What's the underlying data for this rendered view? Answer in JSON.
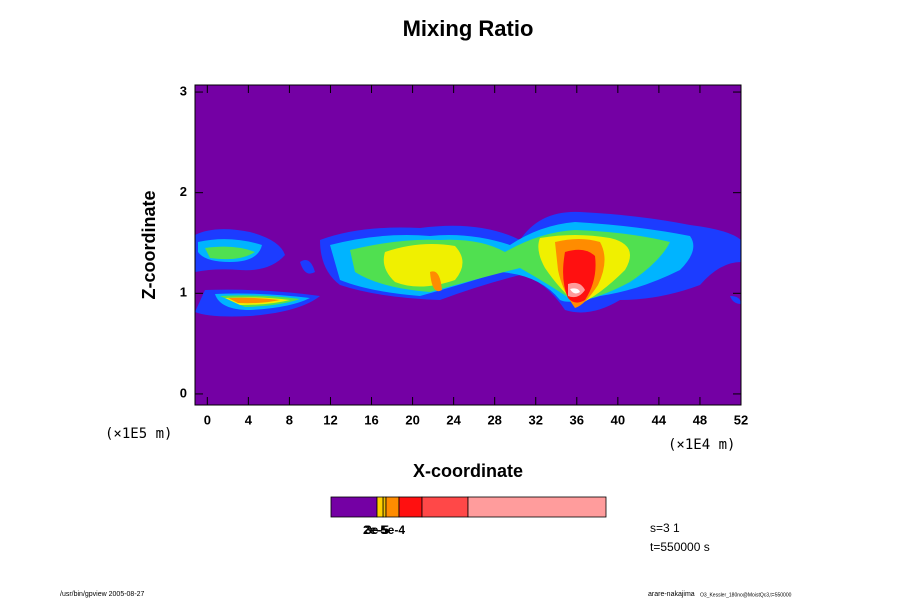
{
  "chart_data": {
    "type": "contour",
    "title": "Mixing Ratio",
    "x_label": "X-coordinate",
    "y_label": "Z-coordinate",
    "x_unit": "(×1E4 m)",
    "y_unit": "(×1E5 m)",
    "xlim": [
      -1.2,
      52
    ],
    "ylim": [
      -0.11,
      3.07
    ],
    "xticks": [
      0,
      4,
      8,
      12,
      16,
      20,
      24,
      28,
      32,
      36,
      40,
      44,
      48,
      52
    ],
    "yticks": [
      0,
      1,
      2,
      3
    ],
    "background_color": "#7400a4",
    "colorbar": {
      "colors": [
        "#7400a4",
        "#f0c000",
        "#ff8c00",
        "#ff1010",
        "#ff4848",
        "#ff9c9c"
      ],
      "labels": [
        "2e-5",
        "3e-5",
        "5e-4"
      ]
    },
    "info": [
      "s=3 1",
      "t=550000 s"
    ],
    "footer_left": "/usr/bin/gpview 2005-08-27",
    "footer_right": "arare-nakajima",
    "footer_right_small": "O3_Kessler_180no@MoistQc3,t=550000"
  }
}
